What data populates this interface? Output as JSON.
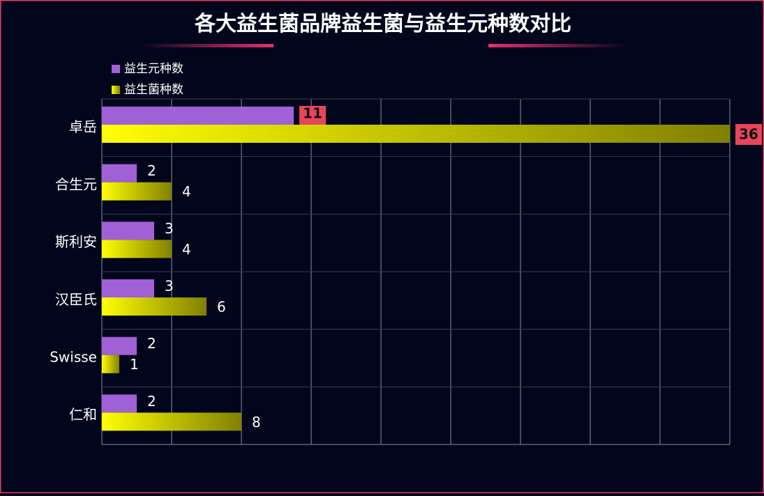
{
  "chart_data": {
    "type": "hbar",
    "title": "各大益生菌品牌益生菌与益生元种数对比",
    "categories": [
      "卓岳",
      "合生元",
      "斯利安",
      "汉臣氏",
      "Swisse",
      "仁和"
    ],
    "series": [
      {
        "name": "益生元种数",
        "color": "#a060d6",
        "values": [
          11,
          2,
          3,
          3,
          2,
          2
        ]
      },
      {
        "name": "益生菌种数",
        "color": "#ffff00",
        "values": [
          36,
          4,
          4,
          6,
          1,
          8
        ]
      }
    ],
    "xlim": [
      0,
      36
    ],
    "xticks": [
      0,
      4,
      8,
      12,
      16,
      20,
      24,
      28,
      32,
      36
    ],
    "grid": true,
    "legend": "top-left"
  }
}
